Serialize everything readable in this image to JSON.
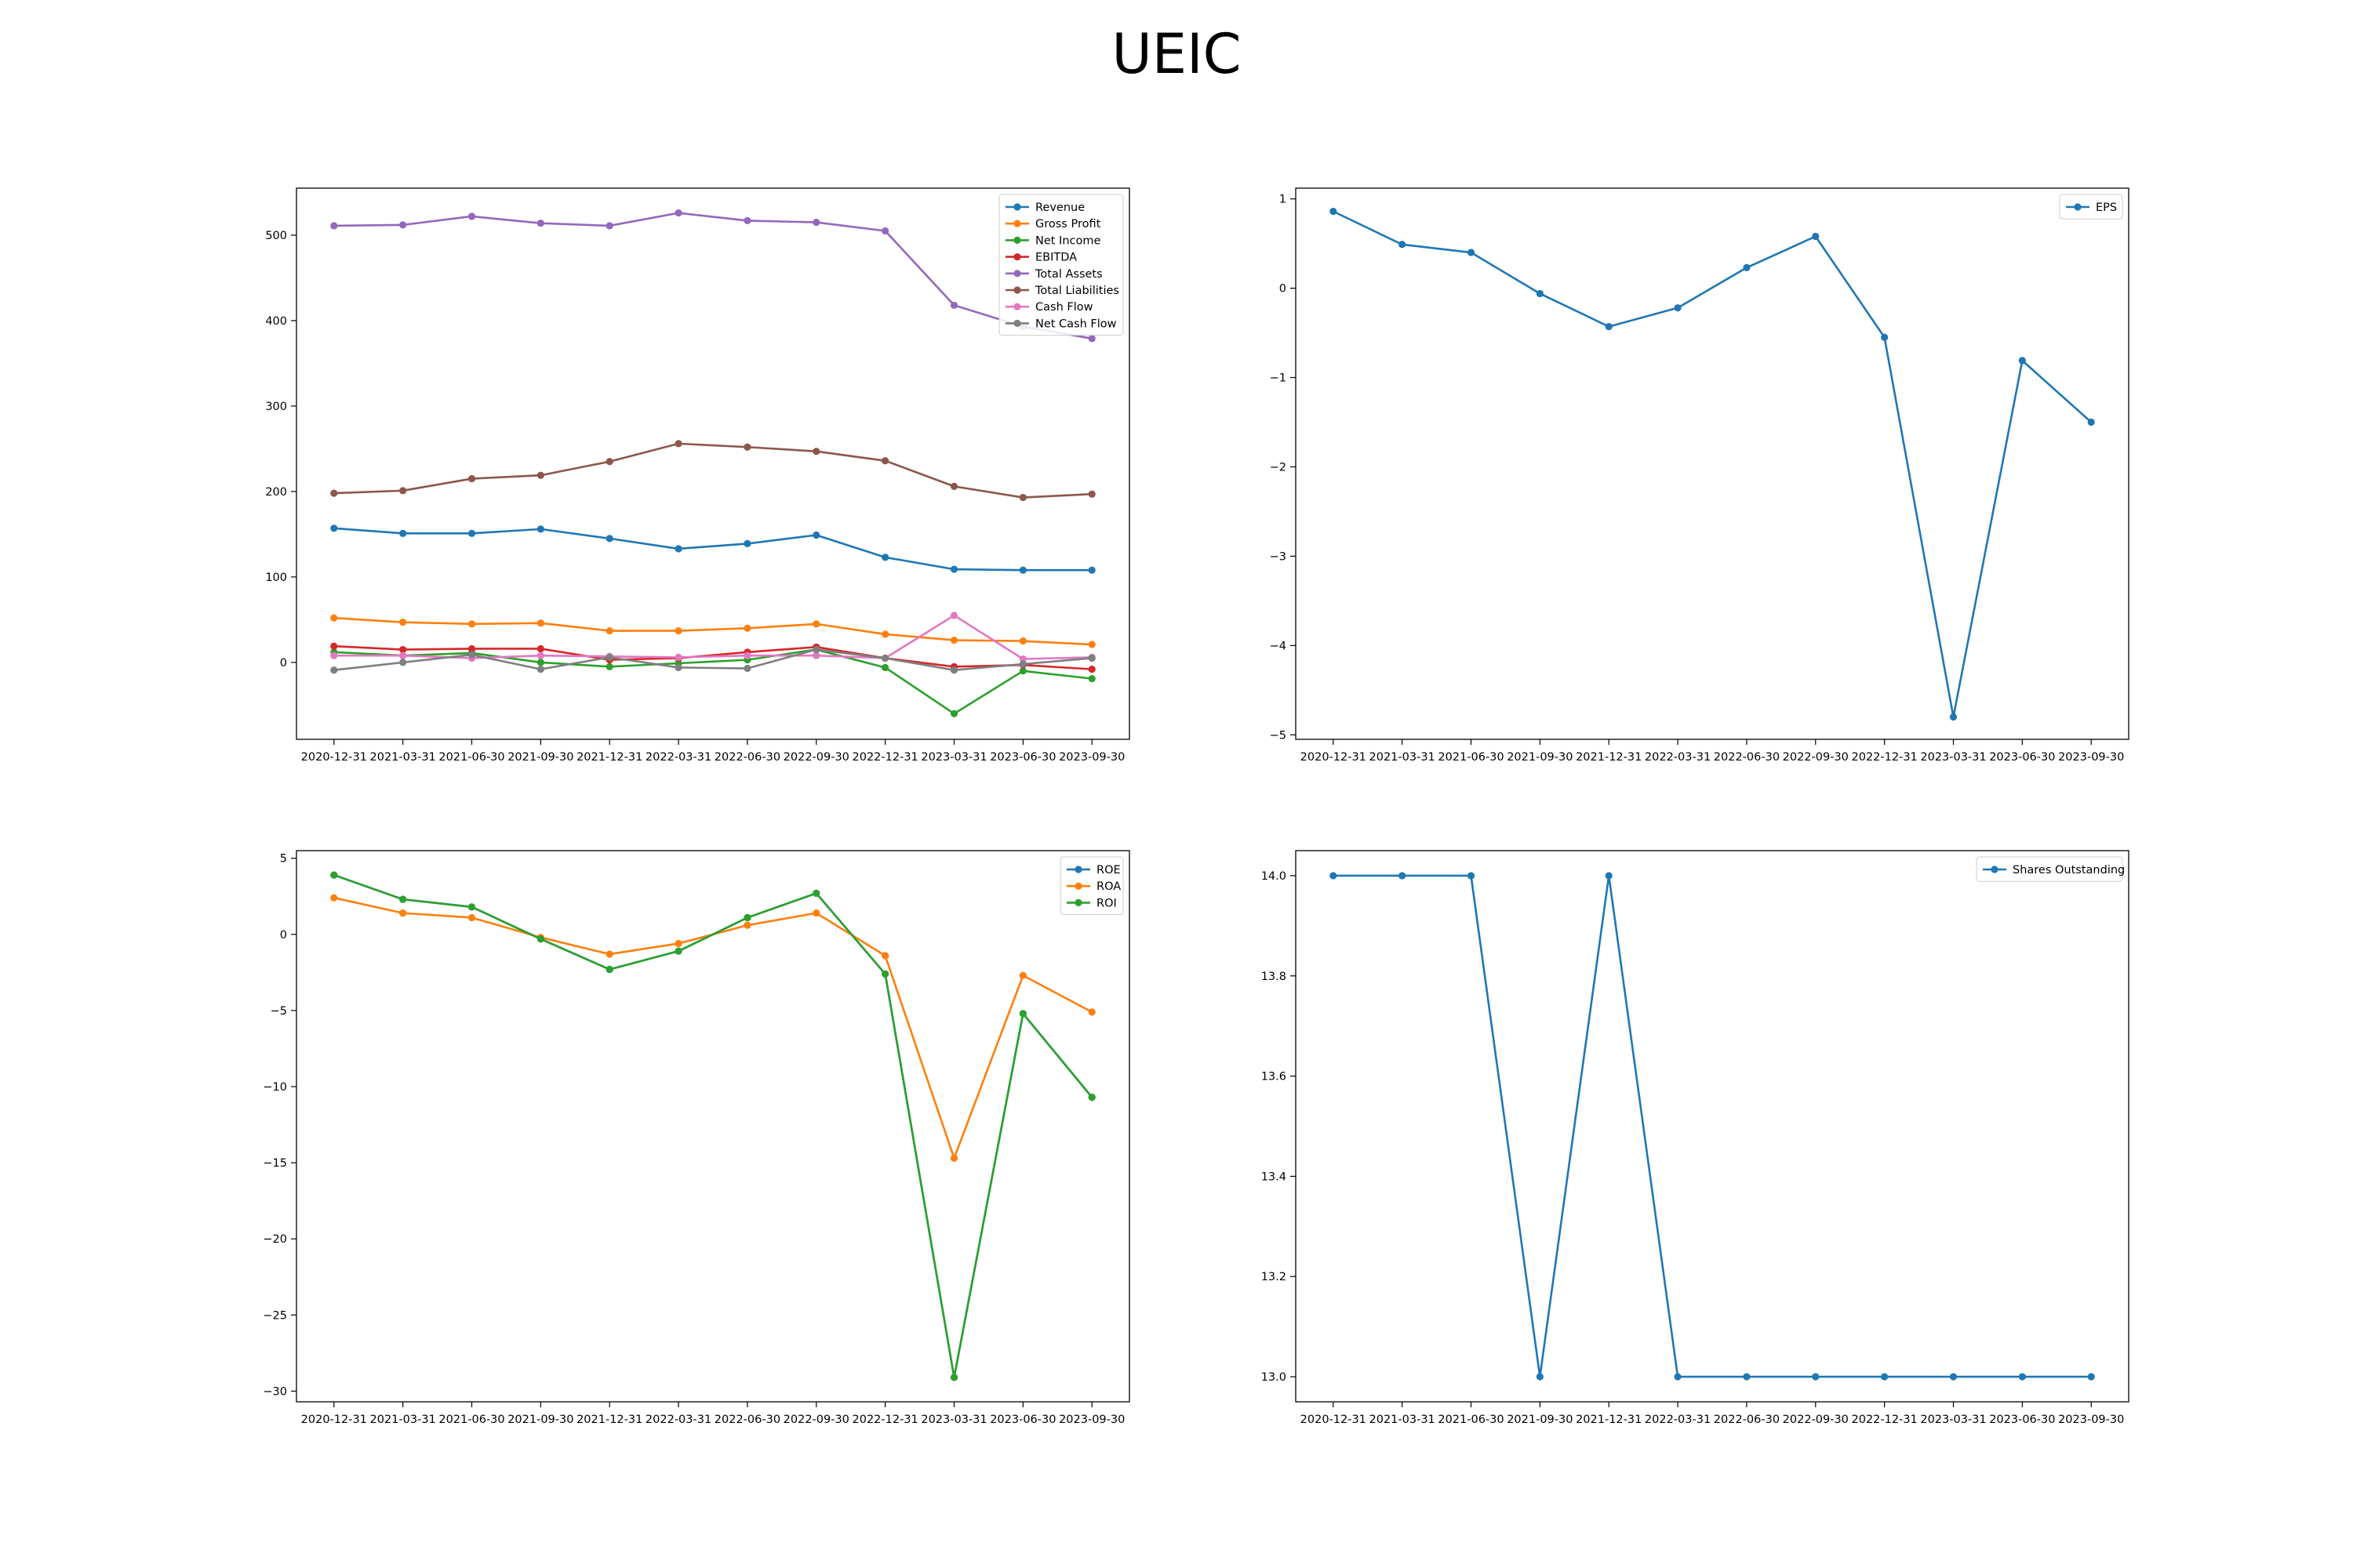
{
  "figure": {
    "title": "UEIC"
  },
  "chart_data": [
    {
      "type": "line",
      "categories": [
        "2020-12-31",
        "2021-03-31",
        "2021-06-30",
        "2021-09-30",
        "2021-12-31",
        "2022-03-31",
        "2022-06-30",
        "2022-09-30",
        "2022-12-31",
        "2023-03-31",
        "2023-06-30",
        "2023-09-30"
      ],
      "ylim": [
        -90,
        555
      ],
      "yticks": [
        0,
        100,
        200,
        300,
        400,
        500
      ],
      "legend": "top-right",
      "grid": false,
      "series": [
        {
          "name": "Revenue",
          "color": "#1f77b4",
          "values": [
            157,
            151,
            151,
            156,
            145,
            133,
            139,
            149,
            123,
            109,
            108,
            108
          ]
        },
        {
          "name": "Gross Profit",
          "color": "#ff7f0e",
          "values": [
            52,
            47,
            45,
            46,
            37,
            37,
            40,
            45,
            33,
            26,
            25,
            21
          ]
        },
        {
          "name": "Net Income",
          "color": "#2ca02c",
          "values": [
            12,
            8,
            11,
            0,
            -5,
            -1,
            3,
            15,
            -6,
            -60,
            -10,
            -19
          ]
        },
        {
          "name": "EBITDA",
          "color": "#d62728",
          "values": [
            19,
            15,
            16,
            16,
            3,
            5,
            12,
            18,
            5,
            -5,
            -3,
            -8
          ]
        },
        {
          "name": "Total Assets",
          "color": "#9467bd",
          "values": [
            511,
            512,
            522,
            514,
            511,
            526,
            517,
            515,
            505,
            418,
            393,
            379
          ]
        },
        {
          "name": "Total Liabilities",
          "color": "#8c564b",
          "values": [
            198,
            201,
            215,
            219,
            235,
            256,
            252,
            247,
            236,
            206,
            193,
            197
          ]
        },
        {
          "name": "Cash Flow",
          "color": "#e377c2",
          "values": [
            8,
            8,
            5,
            8,
            7,
            6,
            8,
            8,
            5,
            55,
            4,
            6
          ]
        },
        {
          "name": "Net Cash Flow",
          "color": "#7f7f7f",
          "values": [
            -9,
            0,
            9,
            -8,
            6,
            -6,
            -7,
            15,
            5,
            -9,
            -2,
            5
          ]
        }
      ]
    },
    {
      "type": "line",
      "categories": [
        "2020-12-31",
        "2021-03-31",
        "2021-06-30",
        "2021-09-30",
        "2021-12-31",
        "2022-03-31",
        "2022-06-30",
        "2022-09-30",
        "2022-12-31",
        "2023-03-31",
        "2023-06-30",
        "2023-09-30"
      ],
      "ylim": [
        -5.05,
        1.12
      ],
      "yticks": [
        1,
        0,
        -1,
        -2,
        -3,
        -4,
        -5
      ],
      "legend": "top-right",
      "grid": false,
      "series": [
        {
          "name": "EPS",
          "color": "#1f77b4",
          "values": [
            0.86,
            0.49,
            0.4,
            -0.06,
            -0.43,
            -0.22,
            0.23,
            0.58,
            -0.55,
            -4.8,
            -0.81,
            -1.5
          ]
        }
      ]
    },
    {
      "type": "line",
      "categories": [
        "2020-12-31",
        "2021-03-31",
        "2021-06-30",
        "2021-09-30",
        "2021-12-31",
        "2022-03-31",
        "2022-06-30",
        "2022-09-30",
        "2022-12-31",
        "2023-03-31",
        "2023-06-30",
        "2023-09-30"
      ],
      "ylim": [
        -30.7,
        5.5
      ],
      "yticks": [
        5,
        0,
        -5,
        -10,
        -15,
        -20,
        -25,
        -30
      ],
      "legend": "top-right",
      "grid": false,
      "series": [
        {
          "name": "ROE",
          "color": "#1f77b4",
          "values": [
            3.9,
            2.3,
            1.8,
            -0.3,
            -2.3,
            -1.1,
            1.1,
            2.7,
            -2.6,
            -29.1,
            -5.2,
            -10.7
          ]
        },
        {
          "name": "ROA",
          "color": "#ff7f0e",
          "values": [
            2.4,
            1.4,
            1.1,
            -0.2,
            -1.3,
            -0.6,
            0.6,
            1.4,
            -1.4,
            -14.7,
            -2.7,
            -5.1
          ]
        },
        {
          "name": "ROI",
          "color": "#2ca02c",
          "values": [
            3.9,
            2.3,
            1.8,
            -0.3,
            -2.3,
            -1.1,
            1.1,
            2.7,
            -2.6,
            -29.1,
            -5.2,
            -10.7
          ]
        }
      ]
    },
    {
      "type": "line",
      "categories": [
        "2020-12-31",
        "2021-03-31",
        "2021-06-30",
        "2021-09-30",
        "2021-12-31",
        "2022-03-31",
        "2022-06-30",
        "2022-09-30",
        "2022-12-31",
        "2023-03-31",
        "2023-06-30",
        "2023-09-30"
      ],
      "ylim": [
        12.95,
        14.05
      ],
      "yticks": [
        14.0,
        13.8,
        13.6,
        13.4,
        13.2,
        13.0
      ],
      "ytick_labels": [
        "14.0",
        "13.8",
        "13.6",
        "13.4",
        "13.2",
        "13.0"
      ],
      "legend": "top-right",
      "grid": false,
      "series": [
        {
          "name": "Shares Outstanding",
          "color": "#1f77b4",
          "values": [
            14,
            14,
            14,
            13,
            14,
            13,
            13,
            13,
            13,
            13,
            13,
            13
          ]
        }
      ]
    }
  ]
}
